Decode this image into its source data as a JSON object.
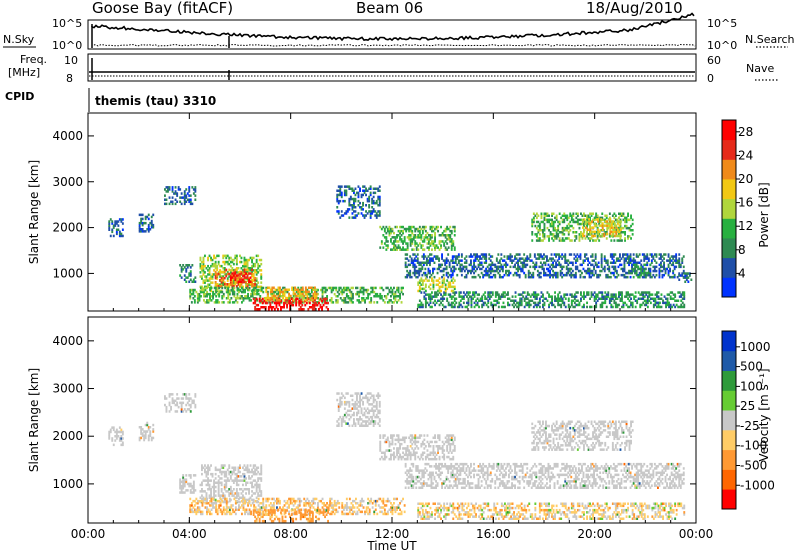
{
  "header": {
    "station": "Goose Bay (fitACF)",
    "beam": "Beam 06",
    "date": "18/Aug/2010"
  },
  "top_strip": {
    "left_label": "N.Sky",
    "ticks_left": [
      "10^5",
      "10^0"
    ],
    "right_label": "N.Search",
    "ticks_right": [
      "10^5",
      "10^0"
    ]
  },
  "freq_strip": {
    "left_label_1": "Freq.",
    "left_label_2": "[MHz]",
    "ticks_left": [
      "10",
      "8"
    ],
    "right_label": "Nave",
    "ticks_right": [
      "60",
      "0"
    ]
  },
  "cpid": {
    "label": "CPID",
    "value": "themis (tau) 3310"
  },
  "colors": {
    "power": [
      "#0033ff",
      "#1f4fa8",
      "#2e8a52",
      "#28b040",
      "#b0d63c",
      "#f2c814",
      "#f08a1a",
      "#e62a1a",
      "#ff0000"
    ],
    "velocity": [
      "#ff0000",
      "#ff6600",
      "#ff9933",
      "#ffcc66",
      "#c8c8c8",
      "#66cc33",
      "#2e9a3a",
      "#1f5aa8",
      "#0033cc"
    ]
  },
  "chart_data": [
    {
      "type": "heatmap",
      "name": "power",
      "ylabel": "Slant Range [km]",
      "yticks": [
        "1000",
        "2000",
        "3000",
        "4000"
      ],
      "ylim": [
        180,
        4500
      ],
      "xticks": [
        "00:00",
        "04:00",
        "08:00",
        "12:00",
        "16:00",
        "20:00",
        "00:00"
      ],
      "xlim_hours": [
        0,
        24
      ],
      "colorbar": {
        "label": "Power [dB]",
        "ticks": [
          "4",
          "8",
          "12",
          "16",
          "20",
          "24",
          "28"
        ],
        "range": [
          0,
          30
        ]
      },
      "regions": [
        {
          "t": [
            0.8,
            1.4
          ],
          "r": [
            1800,
            2200
          ],
          "p": 6
        },
        {
          "t": [
            2.0,
            2.6
          ],
          "r": [
            1900,
            2300
          ],
          "p": 5
        },
        {
          "t": [
            3.0,
            4.2
          ],
          "r": [
            2500,
            2900
          ],
          "p": 6
        },
        {
          "t": [
            3.6,
            4.2
          ],
          "r": [
            800,
            1200
          ],
          "p": 8
        },
        {
          "t": [
            4.4,
            6.8
          ],
          "r": [
            600,
            1400
          ],
          "p": 14
        },
        {
          "t": [
            5.0,
            6.6
          ],
          "r": [
            700,
            1100
          ],
          "p": 22
        },
        {
          "t": [
            5.6,
            6.4
          ],
          "r": [
            800,
            1000
          ],
          "p": 27
        },
        {
          "t": [
            4.0,
            12.5
          ],
          "r": [
            350,
            700
          ],
          "p": 12
        },
        {
          "t": [
            6.5,
            9.5
          ],
          "r": [
            200,
            450
          ],
          "p": 28
        },
        {
          "t": [
            7.0,
            9.0
          ],
          "r": [
            400,
            700
          ],
          "p": 20
        },
        {
          "t": [
            9.8,
            11.5
          ],
          "r": [
            2200,
            2900
          ],
          "p": 6
        },
        {
          "t": [
            11.5,
            14.5
          ],
          "r": [
            1500,
            2000
          ],
          "p": 12
        },
        {
          "t": [
            12.5,
            23.5
          ],
          "r": [
            900,
            1400
          ],
          "p": 6
        },
        {
          "t": [
            13.0,
            23.5
          ],
          "r": [
            250,
            600
          ],
          "p": 9
        },
        {
          "t": [
            17.5,
            21.5
          ],
          "r": [
            1700,
            2300
          ],
          "p": 12
        },
        {
          "t": [
            19.5,
            21.0
          ],
          "r": [
            1800,
            2200
          ],
          "p": 18
        },
        {
          "t": [
            21.5,
            22.2
          ],
          "r": [
            900,
            1200
          ],
          "p": 9
        },
        {
          "t": [
            23.3,
            23.8
          ],
          "r": [
            800,
            1000
          ],
          "p": 6
        },
        {
          "t": [
            13.0,
            14.5
          ],
          "r": [
            600,
            900
          ],
          "p": 16
        }
      ]
    },
    {
      "type": "heatmap",
      "name": "velocity",
      "ylabel": "Slant Range [km]",
      "yticks": [
        "1000",
        "2000",
        "3000",
        "4000"
      ],
      "ylim": [
        180,
        4500
      ],
      "xlabel": "Time UT",
      "xticks": [
        "00:00",
        "04:00",
        "08:00",
        "12:00",
        "16:00",
        "20:00",
        "00:00"
      ],
      "xlim_hours": [
        0,
        24
      ],
      "colorbar": {
        "label": "Velocity [m s⁻¹]",
        "ticks": [
          "1000",
          "500",
          "100",
          "25",
          "-25",
          "-100",
          "-500",
          "-1000"
        ],
        "range": [
          -1500,
          1500
        ]
      },
      "regions": [
        {
          "t": [
            0.8,
            1.4
          ],
          "r": [
            1800,
            2200
          ],
          "v": 0
        },
        {
          "t": [
            2.0,
            2.6
          ],
          "r": [
            1900,
            2300
          ],
          "v": 0
        },
        {
          "t": [
            3.0,
            4.2
          ],
          "r": [
            2500,
            2900
          ],
          "v": 0
        },
        {
          "t": [
            3.6,
            4.2
          ],
          "r": [
            800,
            1200
          ],
          "v": 0
        },
        {
          "t": [
            4.4,
            6.8
          ],
          "r": [
            600,
            1400
          ],
          "v": 0
        },
        {
          "t": [
            4.0,
            12.5
          ],
          "r": [
            350,
            700
          ],
          "v": -60
        },
        {
          "t": [
            6.5,
            9.5
          ],
          "r": [
            200,
            450
          ],
          "v": -150
        },
        {
          "t": [
            9.8,
            11.5
          ],
          "r": [
            2200,
            2900
          ],
          "v": 0
        },
        {
          "t": [
            11.5,
            14.5
          ],
          "r": [
            1500,
            2000
          ],
          "v": 0
        },
        {
          "t": [
            12.5,
            23.5
          ],
          "r": [
            900,
            1400
          ],
          "v": 0
        },
        {
          "t": [
            13.0,
            23.5
          ],
          "r": [
            250,
            600
          ],
          "v": -40
        },
        {
          "t": [
            17.5,
            21.5
          ],
          "r": [
            1700,
            2300
          ],
          "v": 0
        },
        {
          "t": [
            21.5,
            22.2
          ],
          "r": [
            900,
            1200
          ],
          "v": 0
        }
      ]
    }
  ]
}
